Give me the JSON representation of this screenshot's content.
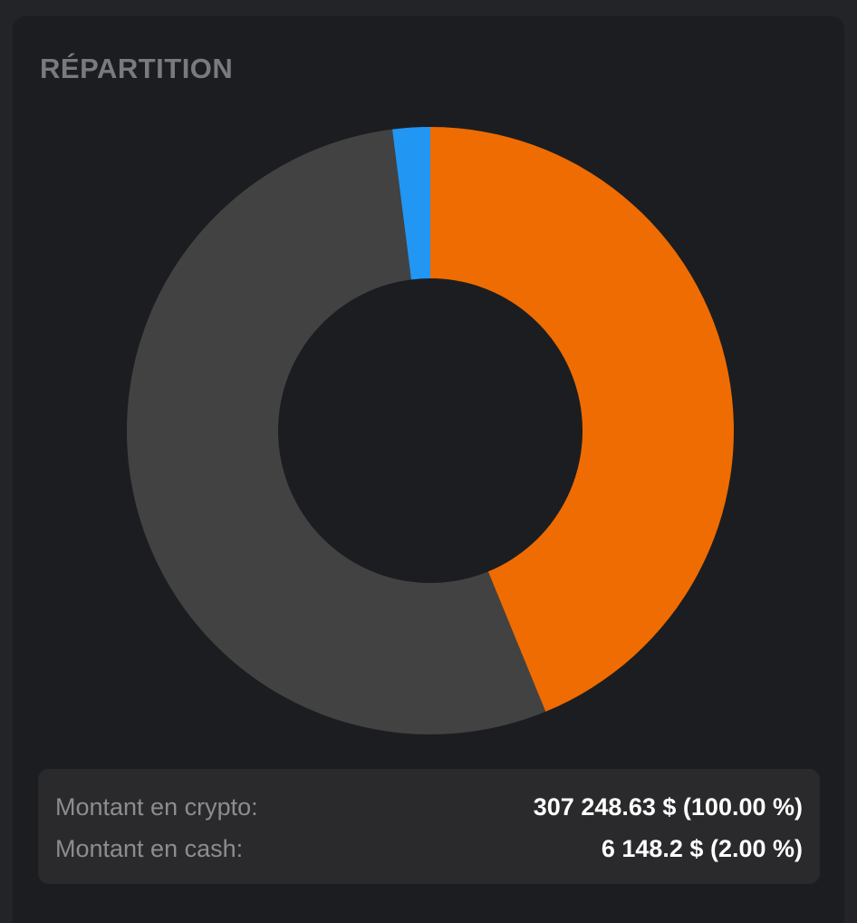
{
  "title": "RÉPARTITION",
  "chart_data": {
    "type": "pie",
    "donut": true,
    "slices": [
      {
        "value": 43.8,
        "color": "#ee6c02"
      },
      {
        "value": 54.2,
        "color": "#424242"
      },
      {
        "value": 2.0,
        "color": "#2196f3"
      }
    ],
    "title": "",
    "legend": "none"
  },
  "summary": {
    "rows": [
      {
        "label": "Montant en crypto:",
        "value": "307 248.63 $ (100.00 %)"
      },
      {
        "label": "Montant en cash:",
        "value": "6 148.2 $ (2.00 %)"
      }
    ]
  },
  "colors": {
    "background": "#1c1d20",
    "outer": "#232427",
    "summary_bg": "#2a2a2c",
    "title": "#7a7a7d"
  }
}
